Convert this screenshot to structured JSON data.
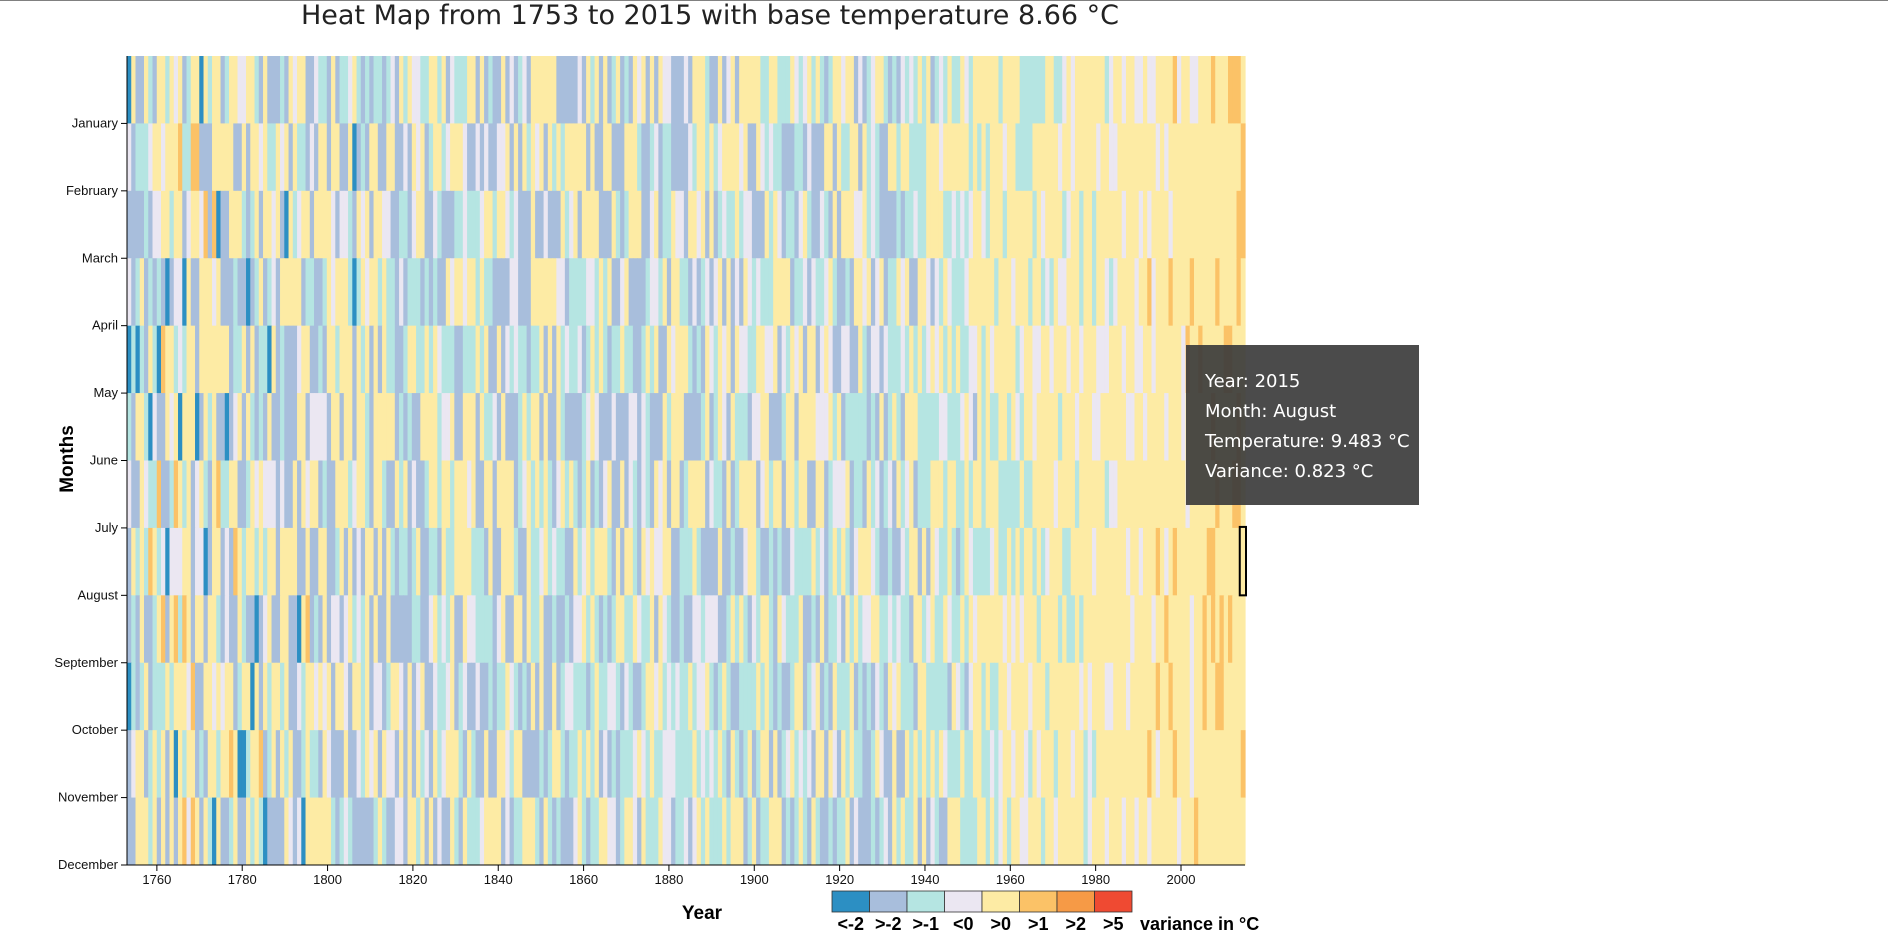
{
  "chart_data": {
    "type": "heatmap",
    "title": "Heat Map from 1753 to 2015 with base temperature 8.66 °C",
    "xlabel": "Year",
    "ylabel": "Months",
    "x_range": [
      1753,
      2015
    ],
    "x_ticks": [
      "1760",
      "1780",
      "1800",
      "1820",
      "1840",
      "1860",
      "1880",
      "1900",
      "1920",
      "1940",
      "1960",
      "1980",
      "2000"
    ],
    "y_categories": [
      "January",
      "February",
      "March",
      "April",
      "May",
      "June",
      "July",
      "August",
      "September",
      "October",
      "November",
      "December"
    ],
    "base_temperature": 8.66,
    "legend": {
      "title": "variance in °C",
      "bins": [
        {
          "label": "<-2",
          "color": "#2c8fc3"
        },
        {
          "label": ">-2",
          "color": "#a8bedc"
        },
        {
          "label": ">-1",
          "color": "#b5e5e2"
        },
        {
          "label": "<0",
          "color": "#ebe7f2"
        },
        {
          "label": ">0",
          "color": "#fdeba4"
        },
        {
          "label": ">1",
          "color": "#fbc267"
        },
        {
          "label": ">2",
          "color": "#f69a46"
        },
        {
          "label": ">5",
          "color": "#ef4a32"
        }
      ]
    },
    "highlighted_cell": {
      "year": 2015,
      "month": "August"
    }
  },
  "tooltip": {
    "year_line": "Year: 2015",
    "month_line": "Month: August",
    "temperature_line": "Temperature: 9.483 °C",
    "variance_line": "Variance: 0.823 °C"
  }
}
